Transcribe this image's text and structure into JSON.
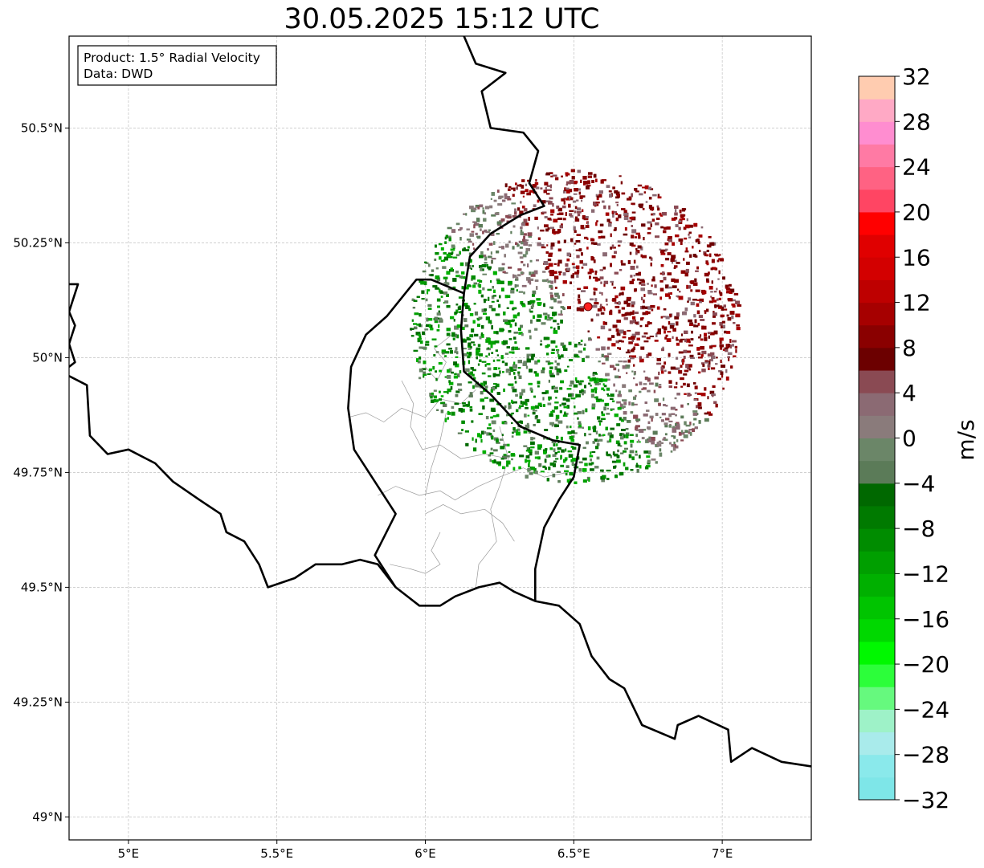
{
  "title": "30.05.2025 15:12 UTC",
  "info_box": {
    "product": "Product: 1.5° Radial Velocity",
    "data": "Data: DWD"
  },
  "map": {
    "lon_range": [
      4.8,
      7.3
    ],
    "lat_range": [
      48.95,
      50.7
    ],
    "lon_ticks": [
      {
        "value": 5.0,
        "label": "5°E"
      },
      {
        "value": 5.5,
        "label": "5.5°E"
      },
      {
        "value": 6.0,
        "label": "6°E"
      },
      {
        "value": 6.5,
        "label": "6.5°E"
      },
      {
        "value": 7.0,
        "label": "7°E"
      }
    ],
    "lat_ticks": [
      {
        "value": 49.0,
        "label": "49°N"
      },
      {
        "value": 49.25,
        "label": "49.25°N"
      },
      {
        "value": 49.5,
        "label": "49.5°N"
      },
      {
        "value": 49.75,
        "label": "49.75°N"
      },
      {
        "value": 50.0,
        "label": "50°N"
      },
      {
        "value": 50.25,
        "label": "50.25°N"
      },
      {
        "value": 50.5,
        "label": "50.5°N"
      }
    ],
    "grid": true,
    "radar_site": {
      "lon": 6.548,
      "lat": 50.111,
      "color": "#ff2020"
    },
    "echo_center": {
      "lon": 6.5,
      "lat": 50.07
    },
    "borders": [
      [
        [
          6.13,
          50.7
        ],
        [
          6.17,
          50.64
        ],
        [
          6.27,
          50.62
        ],
        [
          6.19,
          50.58
        ],
        [
          6.22,
          50.5
        ],
        [
          6.33,
          50.49
        ],
        [
          6.38,
          50.45
        ],
        [
          6.35,
          50.38
        ],
        [
          6.4,
          50.33
        ],
        [
          6.32,
          50.31
        ],
        [
          6.22,
          50.27
        ],
        [
          6.15,
          50.22
        ],
        [
          6.13,
          50.14
        ],
        [
          6.12,
          50.06
        ],
        [
          6.13,
          49.97
        ],
        [
          6.22,
          49.92
        ],
        [
          6.32,
          49.85
        ],
        [
          6.43,
          49.82
        ],
        [
          6.52,
          49.81
        ],
        [
          6.5,
          49.74
        ],
        [
          6.45,
          49.69
        ],
        [
          6.4,
          49.63
        ],
        [
          6.37,
          49.54
        ],
        [
          6.37,
          49.47
        ]
      ],
      [
        [
          4.8,
          50.16
        ],
        [
          4.83,
          50.16
        ],
        [
          4.8,
          50.1
        ],
        [
          4.82,
          50.07
        ],
        [
          4.8,
          50.03
        ],
        [
          4.82,
          49.99
        ],
        [
          4.8,
          49.98
        ]
      ],
      [
        [
          4.8,
          49.96
        ],
        [
          4.86,
          49.94
        ],
        [
          4.87,
          49.83
        ],
        [
          4.93,
          49.79
        ],
        [
          5.0,
          49.8
        ],
        [
          5.09,
          49.77
        ],
        [
          5.15,
          49.73
        ],
        [
          5.24,
          49.69
        ],
        [
          5.31,
          49.66
        ],
        [
          5.33,
          49.62
        ],
        [
          5.39,
          49.6
        ],
        [
          5.44,
          49.55
        ],
        [
          5.47,
          49.5
        ],
        [
          5.56,
          49.52
        ],
        [
          5.63,
          49.55
        ],
        [
          5.72,
          49.55
        ],
        [
          5.78,
          49.56
        ],
        [
          5.84,
          49.55
        ],
        [
          5.9,
          49.5
        ],
        [
          5.98,
          49.46
        ],
        [
          6.05,
          49.46
        ],
        [
          6.1,
          49.48
        ],
        [
          6.18,
          49.5
        ],
        [
          6.25,
          49.51
        ],
        [
          6.3,
          49.49
        ],
        [
          6.37,
          49.47
        ],
        [
          6.45,
          49.46
        ],
        [
          6.52,
          49.42
        ],
        [
          6.56,
          49.35
        ],
        [
          6.62,
          49.3
        ],
        [
          6.67,
          49.28
        ],
        [
          6.73,
          49.2
        ],
        [
          6.84,
          49.17
        ],
        [
          6.85,
          49.2
        ],
        [
          6.92,
          49.22
        ],
        [
          7.02,
          49.19
        ],
        [
          7.03,
          49.12
        ],
        [
          7.1,
          49.15
        ],
        [
          7.2,
          49.12
        ],
        [
          7.3,
          49.11
        ]
      ],
      [
        [
          6.13,
          50.14
        ],
        [
          6.02,
          50.17
        ],
        [
          5.97,
          50.17
        ],
        [
          5.87,
          50.09
        ],
        [
          5.8,
          50.05
        ],
        [
          5.75,
          49.98
        ],
        [
          5.74,
          49.89
        ],
        [
          5.76,
          49.8
        ],
        [
          5.84,
          49.72
        ],
        [
          5.9,
          49.66
        ],
        [
          5.83,
          49.57
        ],
        [
          5.9,
          49.5
        ]
      ]
    ]
  },
  "colorbar": {
    "label": "m/s",
    "min": -32,
    "max": 32,
    "ticks": [
      -32,
      -28,
      -24,
      -20,
      -16,
      -12,
      -8,
      -4,
      0,
      4,
      8,
      12,
      16,
      20,
      24,
      28,
      32
    ],
    "tick_labels": [
      "−32",
      "−28",
      "−24",
      "−20",
      "−16",
      "−12",
      "−8",
      "−4",
      "0",
      "4",
      "8",
      "12",
      "16",
      "20",
      "24",
      "28",
      "32"
    ],
    "colors": [
      "#7ee6e8",
      "#8ae9eb",
      "#a9ebeb",
      "#9ef2c8",
      "#66f97e",
      "#2cfe3a",
      "#00f800",
      "#00d800",
      "#00c400",
      "#00b000",
      "#009f00",
      "#008c00",
      "#007a00",
      "#006800",
      "#5b7b58",
      "#6b8668",
      "#8a7b7b",
      "#8b6a73",
      "#8a4a53",
      "#6c0000",
      "#8a0000",
      "#a60000",
      "#be0000",
      "#d30000",
      "#e00000",
      "#ff0000",
      "#ff4563",
      "#ff6283",
      "#ff7aa4",
      "#ff8dd0",
      "#ffa9c5",
      "#ffccb0"
    ]
  }
}
